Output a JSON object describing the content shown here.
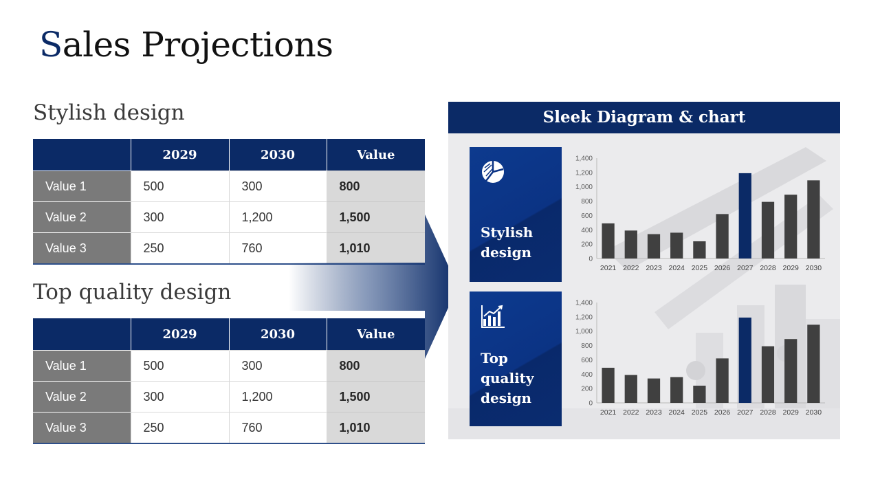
{
  "title": {
    "first_letter": "S",
    "rest": "ales Projections"
  },
  "tables": [
    {
      "heading": "Stylish design",
      "columns": [
        "",
        "2029",
        "2030",
        "Value"
      ],
      "rows": [
        {
          "label": "Value 1",
          "c2029": "500",
          "c2030": "300",
          "value": "800"
        },
        {
          "label": "Value 2",
          "c2029": "300",
          "c2030": "1,200",
          "value": "1,500"
        },
        {
          "label": "Value 3",
          "c2029": "250",
          "c2030": "760",
          "value": "1,010"
        }
      ]
    },
    {
      "heading": "Top quality design",
      "columns": [
        "",
        "2029",
        "2030",
        "Value"
      ],
      "rows": [
        {
          "label": "Value 1",
          "c2029": "500",
          "c2030": "300",
          "value": "800"
        },
        {
          "label": "Value 2",
          "c2029": "300",
          "c2030": "1,200",
          "value": "1,500"
        },
        {
          "label": "Value 3",
          "c2029": "250",
          "c2030": "760",
          "value": "1,010"
        }
      ]
    }
  ],
  "panel": {
    "header": "Sleek Diagram & chart",
    "cards": [
      {
        "label_line1": "Stylish",
        "label_line2": "design",
        "label_line3": "",
        "icon": "pie-chart-icon"
      },
      {
        "label_line1": "Top",
        "label_line2": "quality",
        "label_line3": "design",
        "icon": "bar-chart-icon"
      }
    ]
  },
  "colors": {
    "navy": "#0b2a66",
    "bar": "#404040",
    "highlight_bar": "#0b2a66",
    "row_label_bg": "#7a7a7a",
    "value_col_bg": "#d9d9d9"
  },
  "chart_data": [
    {
      "type": "bar",
      "categories": [
        "2021",
        "2022",
        "2023",
        "2024",
        "2025",
        "2026",
        "2027",
        "2028",
        "2029",
        "2030"
      ],
      "values": [
        490,
        390,
        340,
        360,
        240,
        620,
        1190,
        790,
        890,
        1090
      ],
      "highlight_category": "2027",
      "yticks": [
        "0",
        "200",
        "400",
        "600",
        "800",
        "1,000",
        "1,200",
        "1,400"
      ],
      "ylim": [
        0,
        1400
      ],
      "grid": false,
      "legend": "none"
    },
    {
      "type": "bar",
      "categories": [
        "2021",
        "2022",
        "2023",
        "2024",
        "2025",
        "2026",
        "2027",
        "2028",
        "2029",
        "2030"
      ],
      "values": [
        490,
        390,
        340,
        360,
        240,
        620,
        1190,
        790,
        890,
        1090
      ],
      "highlight_category": "2027",
      "yticks": [
        "0",
        "200",
        "400",
        "600",
        "800",
        "1,000",
        "1,200",
        "1,400"
      ],
      "ylim": [
        0,
        1400
      ],
      "grid": false,
      "legend": "none"
    }
  ]
}
